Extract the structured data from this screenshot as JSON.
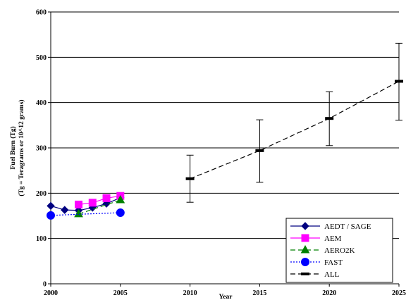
{
  "chart_data": {
    "type": "line",
    "title": "",
    "xlabel": "Year",
    "ylabel": "Fuel Burn (Tg)",
    "ylabel2": "(Tg = Teragrams or 10^12 grams)",
    "xlim": [
      2000,
      2025
    ],
    "ylim": [
      0,
      600
    ],
    "xticks": [
      2000,
      2005,
      2010,
      2015,
      2020,
      2025
    ],
    "yticks": [
      0,
      100,
      200,
      300,
      400,
      500,
      600
    ],
    "grid": "horizontal",
    "legend_position": "bottom-right",
    "series": [
      {
        "name": "AEDT / SAGE",
        "color": "#000080",
        "line": "solid",
        "marker": "diamond",
        "x": [
          2000,
          2001,
          2002,
          2003,
          2004,
          2005
        ],
        "y": [
          172,
          163,
          162,
          168,
          177,
          190
        ]
      },
      {
        "name": "AEM",
        "color": "#ff00ff",
        "line": "solid",
        "marker": "square",
        "x": [
          2002,
          2003,
          2004,
          2005
        ],
        "y": [
          175,
          179,
          189,
          194
        ]
      },
      {
        "name": "AERO2K",
        "color": "#008000",
        "line": "dashed",
        "marker": "triangle",
        "x": [
          2002,
          2005
        ],
        "y": [
          154,
          185
        ]
      },
      {
        "name": "FAST",
        "color": "#0000ff",
        "line": "dotted",
        "marker": "circle",
        "x": [
          2000,
          2005
        ],
        "y": [
          151,
          157
        ]
      },
      {
        "name": "ALL",
        "color": "#000000",
        "line": "dashed",
        "marker": "dash",
        "x": [
          2010,
          2015,
          2020,
          2025
        ],
        "y": [
          232,
          294,
          365,
          447
        ],
        "error_low": [
          180,
          224,
          305,
          361
        ],
        "error_high": [
          284,
          362,
          424,
          531
        ]
      }
    ]
  }
}
